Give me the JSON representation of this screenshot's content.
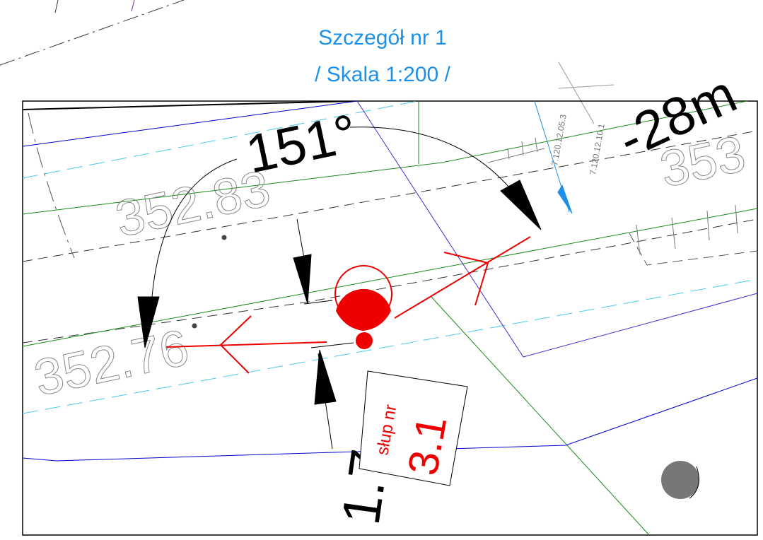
{
  "title": {
    "line1": "Szczegół nr 1",
    "line2": "/ Skala 1:200 /"
  },
  "labels": {
    "angle": "151°",
    "distance": "-28m",
    "elevation_1": "352.83",
    "elevation_2": "352.76",
    "elevation_3": "353",
    "offset": "1.7",
    "pole_caption": "słup nr",
    "pole_number": "3.1",
    "code_1": "7.120.12.05.3",
    "code_2": "7.120.12.10.1"
  }
}
